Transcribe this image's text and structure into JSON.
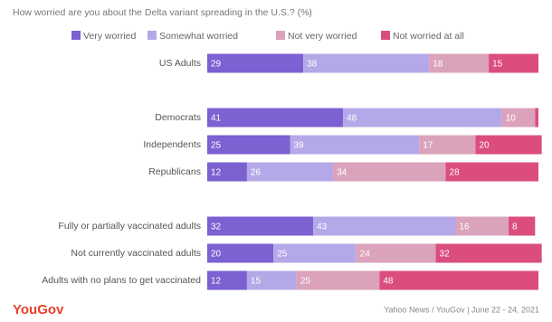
{
  "chart_data": {
    "type": "stacked-bar-horizontal",
    "title": "How worried are you about the Delta variant spreading in the U.S.? (%)",
    "categories": [
      "US Adults",
      null,
      "Democrats",
      "Independents",
      "Republicans",
      null,
      "Fully or partially vaccinated adults",
      "Not currently vaccinated adults",
      "Adults with no plans to get vaccinated"
    ],
    "series": [
      {
        "name": "Very worried",
        "color": "#7b61d1",
        "values": [
          29,
          null,
          41,
          25,
          12,
          null,
          32,
          20,
          12
        ]
      },
      {
        "name": "Somewhat worried",
        "color": "#b5a8e8",
        "values": [
          38,
          null,
          48,
          39,
          26,
          null,
          43,
          25,
          15
        ]
      },
      {
        "name": "Not very worried",
        "color": "#dba3bb",
        "values": [
          18,
          null,
          10,
          17,
          34,
          null,
          16,
          24,
          25
        ]
      },
      {
        "name": "Not worried at all",
        "color": "#db4d7f",
        "values": [
          15,
          null,
          1,
          20,
          28,
          null,
          8,
          32,
          48
        ]
      }
    ],
    "xlim": [
      0,
      100
    ],
    "source": "Yahoo News / YouGov | June 22 - 24, 2021",
    "logo": "YouGov"
  }
}
